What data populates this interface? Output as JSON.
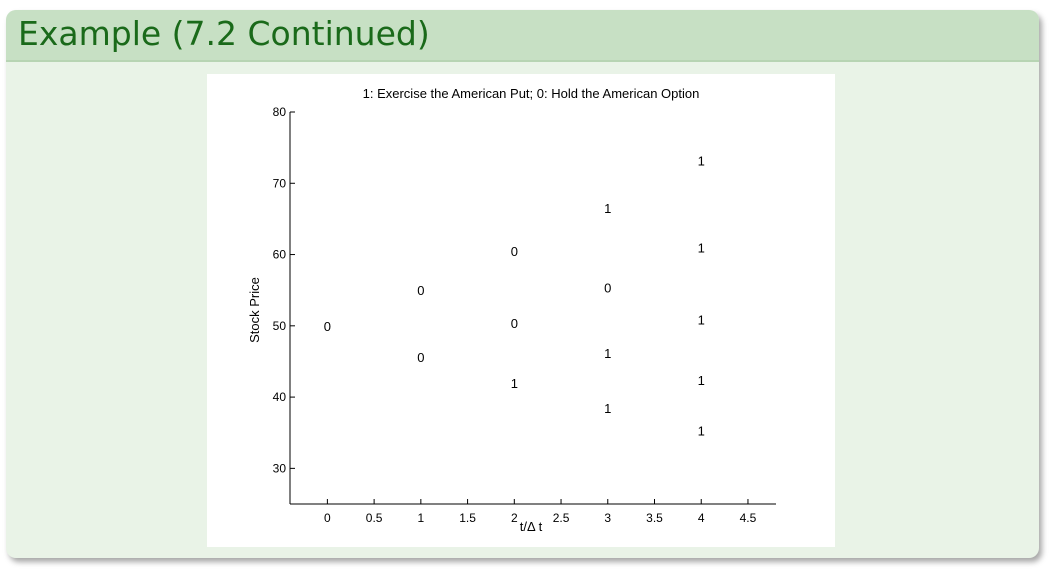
{
  "slide": {
    "title": "Example (7.2 Continued)"
  },
  "chart_data": {
    "type": "scatter",
    "title": "1: Exercise the American Put; 0: Hold the American Option",
    "xlabel": "t/Δ t",
    "ylabel": "Stock Price",
    "xlim": [
      -0.4,
      4.8
    ],
    "ylim": [
      25,
      80
    ],
    "x_ticks": [
      0,
      0.5,
      1,
      1.5,
      2,
      2.5,
      3,
      3.5,
      4,
      4.5
    ],
    "x_tick_labels": [
      "0",
      "0.5",
      "1",
      "1.5",
      "2",
      "2.5",
      "3",
      "3.5",
      "4",
      "4.5"
    ],
    "y_ticks": [
      30,
      40,
      50,
      60,
      70,
      80
    ],
    "y_tick_labels": [
      "30",
      "40",
      "50",
      "60",
      "70",
      "80"
    ],
    "marker": "text label",
    "points": [
      {
        "x": 0,
        "y": 50,
        "label": "0"
      },
      {
        "x": 1,
        "y": 55,
        "label": "0"
      },
      {
        "x": 1,
        "y": 45.6,
        "label": "0"
      },
      {
        "x": 2,
        "y": 60.5,
        "label": "0"
      },
      {
        "x": 2,
        "y": 50.4,
        "label": "0"
      },
      {
        "x": 2,
        "y": 42,
        "label": "1"
      },
      {
        "x": 3,
        "y": 66.5,
        "label": "1"
      },
      {
        "x": 3,
        "y": 55.4,
        "label": "0"
      },
      {
        "x": 3,
        "y": 46.2,
        "label": "1"
      },
      {
        "x": 3,
        "y": 38.5,
        "label": "1"
      },
      {
        "x": 4,
        "y": 73.2,
        "label": "1"
      },
      {
        "x": 4,
        "y": 61,
        "label": "1"
      },
      {
        "x": 4,
        "y": 50.9,
        "label": "1"
      },
      {
        "x": 4,
        "y": 42.4,
        "label": "1"
      },
      {
        "x": 4,
        "y": 35.3,
        "label": "1"
      }
    ]
  }
}
